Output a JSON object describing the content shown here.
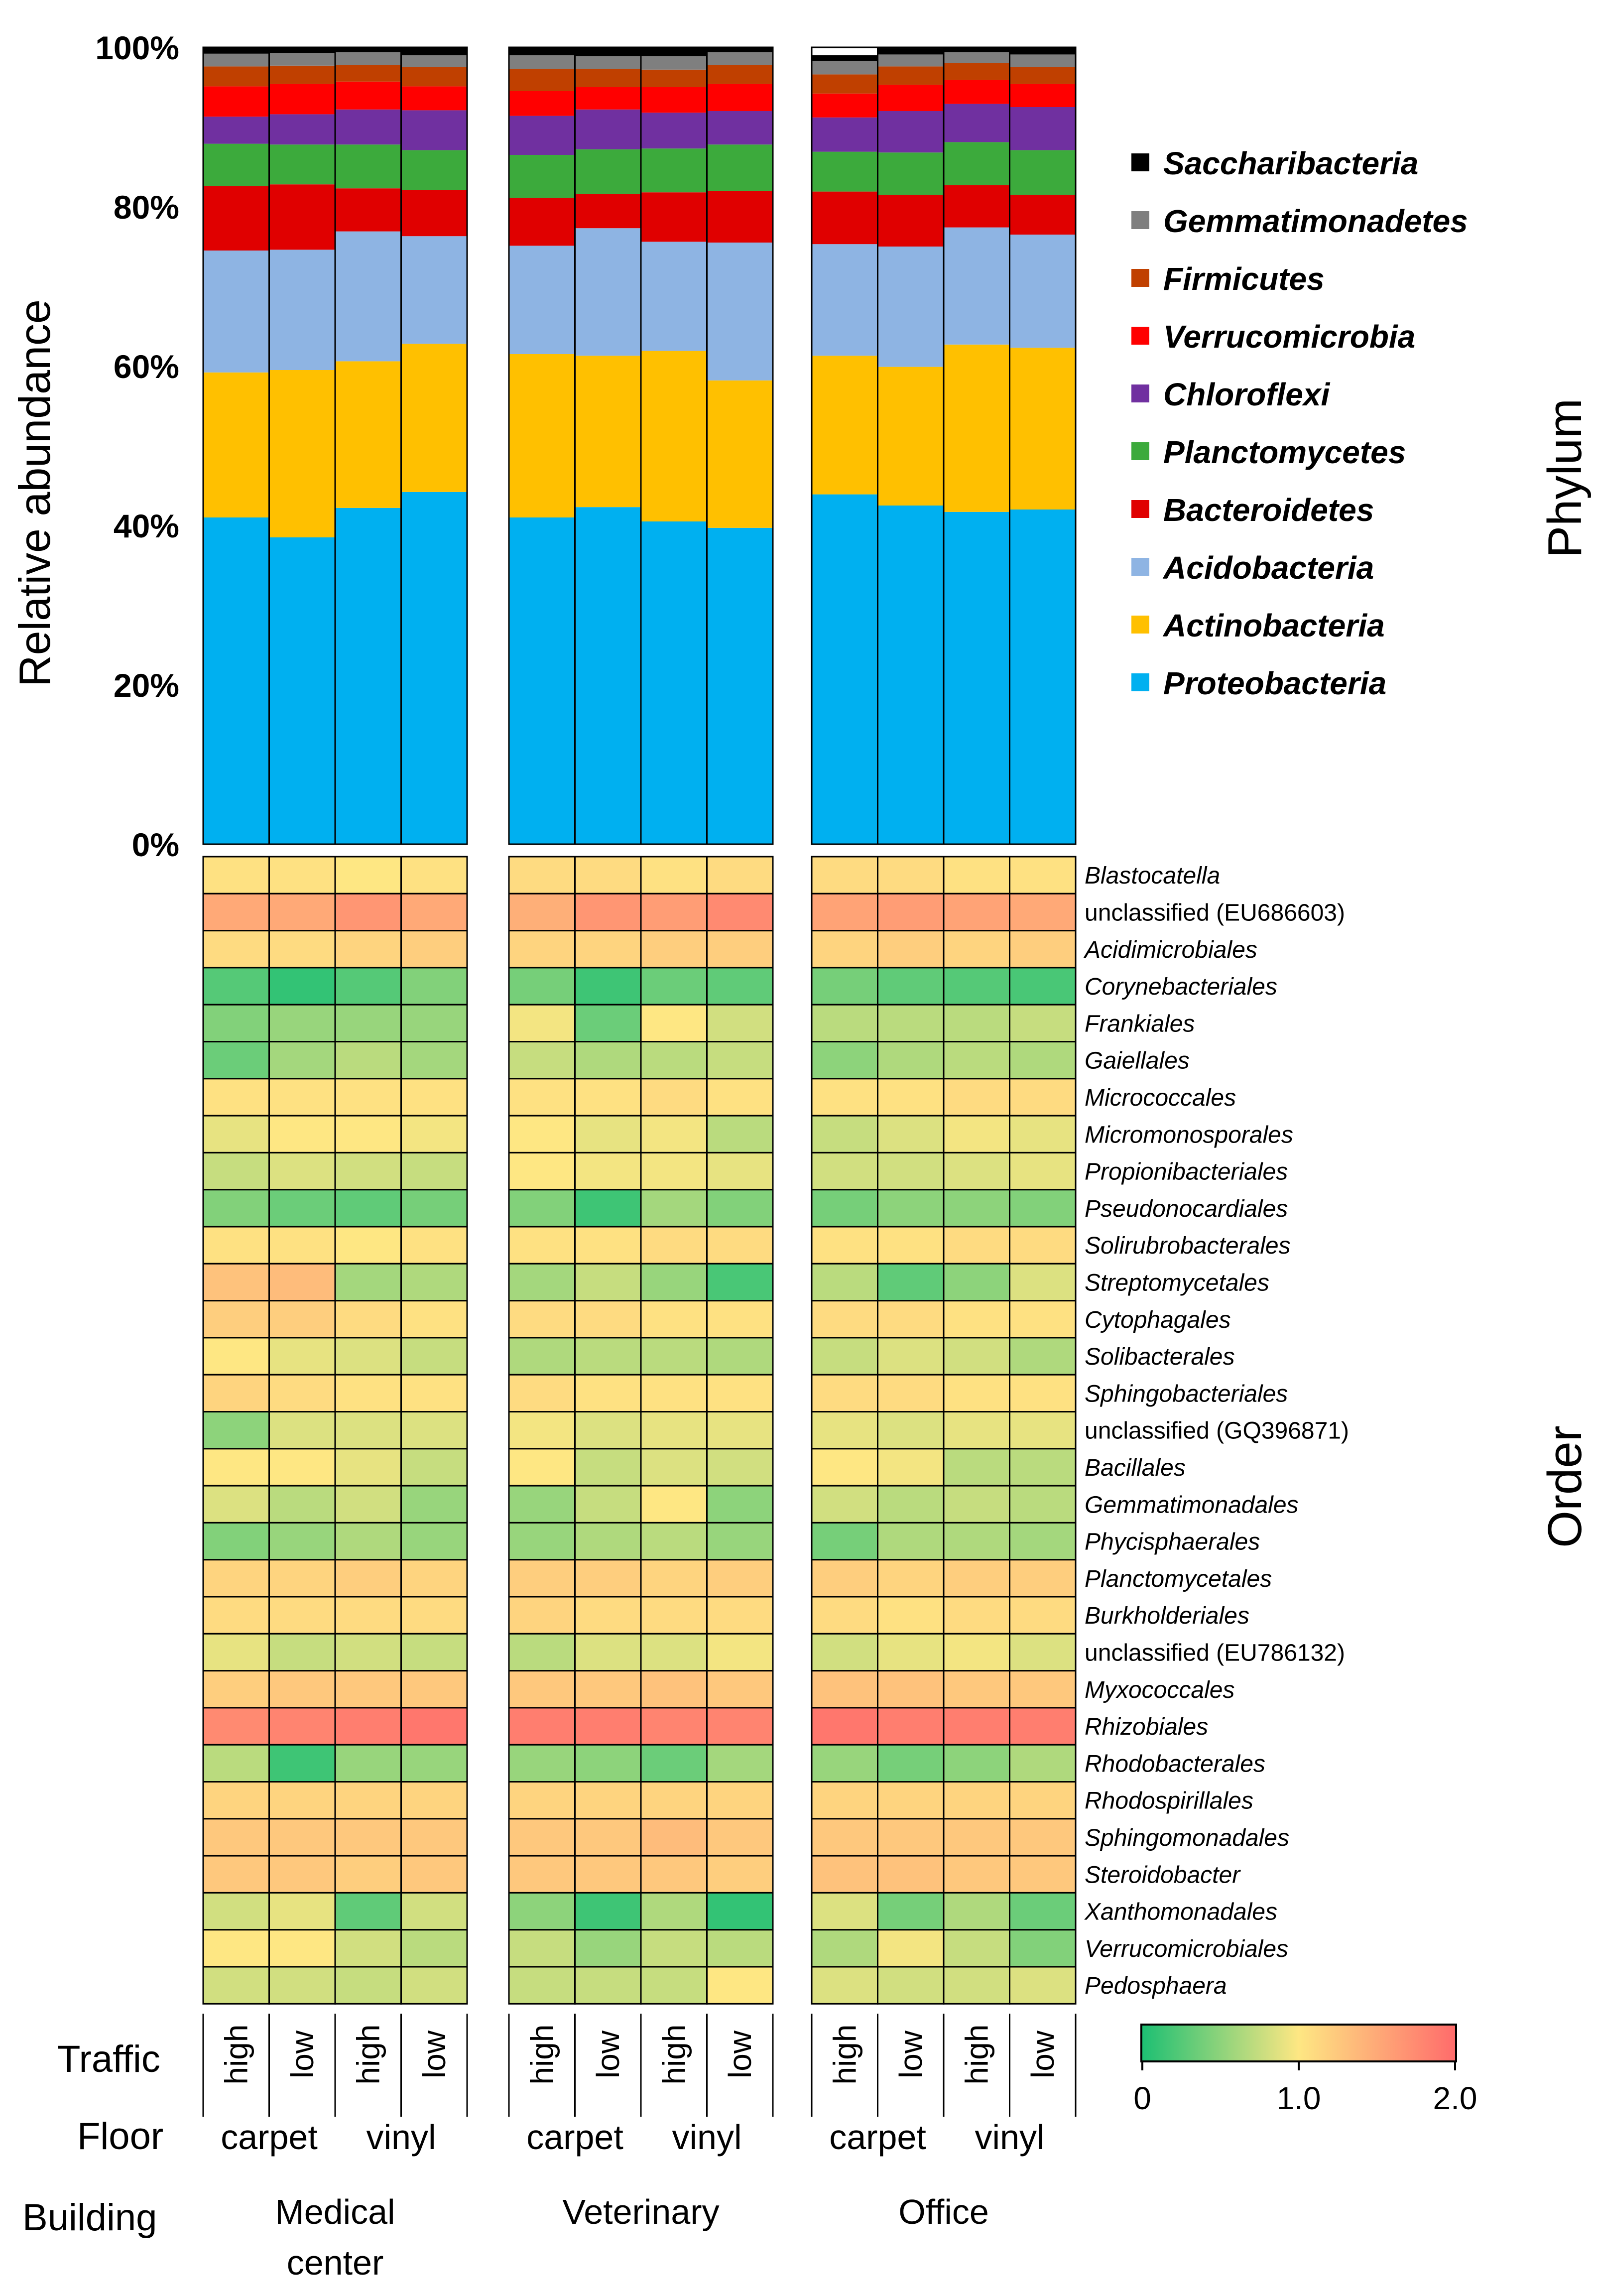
{
  "chart_data": [
    {
      "type": "bar",
      "stacked": true,
      "ylabel": "Relative abundance",
      "side_title": "Phylum",
      "ylim": [
        0,
        100
      ],
      "yticks": [
        "0%",
        "20%",
        "40%",
        "60%",
        "80%",
        "100%"
      ],
      "groups": [
        {
          "building": "Medical center",
          "samples": [
            "carpet-high",
            "carpet-low",
            "vinyl-high",
            "vinyl-low"
          ]
        },
        {
          "building": "Veterinary",
          "samples": [
            "carpet-high",
            "carpet-low",
            "vinyl-high",
            "vinyl-low"
          ]
        },
        {
          "building": "Office",
          "samples": [
            "carpet-high",
            "carpet-low",
            "vinyl-high",
            "vinyl-low"
          ]
        }
      ],
      "series": [
        {
          "name": "Proteobacteria",
          "color": "#00B0F0",
          "values": [
            41,
            38.5,
            42.2,
            44.2,
            41,
            42.3,
            40.5,
            39.7,
            43.9,
            42.5,
            41.7,
            42
          ]
        },
        {
          "name": "Actinobacteria",
          "color": "#FFC000",
          "values": [
            18.2,
            21,
            18.4,
            18.6,
            20.5,
            19,
            21.4,
            18.5,
            17.4,
            17.4,
            21,
            20.3
          ]
        },
        {
          "name": "Acidobacteria",
          "color": "#8EB4E3",
          "values": [
            15.3,
            15.1,
            16.3,
            13.5,
            13.6,
            16,
            13.7,
            17.3,
            14,
            15.1,
            14.7,
            14.2
          ]
        },
        {
          "name": "Bacteroidetes",
          "color": "#E00000",
          "values": [
            8.1,
            8.2,
            5.4,
            5.8,
            6,
            4.3,
            6.2,
            6.5,
            6.6,
            6.5,
            5.3,
            5
          ]
        },
        {
          "name": "Planctomycetes",
          "color": "#3CAA3C",
          "values": [
            5.3,
            5,
            5.5,
            5,
            5.4,
            5.6,
            5.5,
            5.8,
            5,
            5.3,
            5.4,
            5.6
          ]
        },
        {
          "name": "Chloroflexi",
          "color": "#7030A0",
          "values": [
            3.4,
            3.8,
            4.4,
            5,
            4.9,
            5,
            4.5,
            4.2,
            4.3,
            5.2,
            4.8,
            5.4
          ]
        },
        {
          "name": "Verrucomicrobia",
          "color": "#FF0000",
          "values": [
            3.8,
            3.8,
            3.5,
            3,
            3.1,
            2.8,
            3.2,
            3.4,
            3,
            3.3,
            3,
            2.9
          ]
        },
        {
          "name": "Firmicutes",
          "color": "#C04000",
          "values": [
            2.5,
            2.3,
            2.1,
            2.4,
            2.8,
            2.3,
            2.2,
            2.4,
            2.4,
            2.3,
            2.1,
            2.1
          ]
        },
        {
          "name": "Gemmatimonadetes",
          "color": "#7F7F7F",
          "values": [
            1.6,
            1.6,
            1.6,
            1.5,
            1.7,
            1.6,
            1.7,
            1.6,
            1.7,
            1.5,
            1.4,
            1.6
          ]
        },
        {
          "name": "Saccharibacteria",
          "color": "#000000",
          "values": [
            0.8,
            0.7,
            0.6,
            1,
            1,
            1.1,
            1.1,
            0.6,
            0.7,
            0.8,
            0.6,
            0.9
          ]
        }
      ]
    },
    {
      "type": "heatmap",
      "side_title": "Order",
      "colorbar": {
        "min": 0,
        "mid": 1.0,
        "max": 2.0,
        "tick_labels": [
          "0",
          "1.0",
          "2.0"
        ],
        "colors": [
          "#1CBF73",
          "#FEE783",
          "#FF6B6B"
        ]
      },
      "rows": [
        {
          "label": "Blastocatella",
          "italic": true,
          "values": [
            1.05,
            1.05,
            1.0,
            1.05,
            1.1,
            1.1,
            1.05,
            1.1,
            1.1,
            1.1,
            1.05,
            1.05
          ]
        },
        {
          "label": "unclassified (EU686603)",
          "italic": false,
          "values": [
            1.5,
            1.5,
            1.65,
            1.5,
            1.45,
            1.65,
            1.6,
            1.75,
            1.55,
            1.6,
            1.55,
            1.5
          ]
        },
        {
          "label": "Acidimicrobiales",
          "italic": true,
          "values": [
            1.1,
            1.1,
            1.15,
            1.2,
            1.15,
            1.15,
            1.2,
            1.2,
            1.15,
            1.2,
            1.15,
            1.2
          ]
        },
        {
          "label": "Corynebacteriales",
          "italic": true,
          "values": [
            0.25,
            0.1,
            0.25,
            0.45,
            0.4,
            0.15,
            0.35,
            0.3,
            0.4,
            0.3,
            0.25,
            0.2
          ]
        },
        {
          "label": "Frankiales",
          "italic": true,
          "values": [
            0.45,
            0.55,
            0.55,
            0.55,
            0.95,
            0.35,
            1.0,
            0.8,
            0.7,
            0.7,
            0.7,
            0.75
          ]
        },
        {
          "label": "Gaiellales",
          "italic": true,
          "values": [
            0.35,
            0.6,
            0.7,
            0.6,
            0.75,
            0.65,
            0.7,
            0.75,
            0.5,
            0.65,
            0.7,
            0.65
          ]
        },
        {
          "label": "Micrococcales",
          "italic": true,
          "values": [
            1.05,
            1.05,
            1.05,
            1.05,
            1.05,
            1.05,
            1.1,
            1.05,
            1.05,
            1.05,
            1.1,
            1.1
          ]
        },
        {
          "label": "Micromonosporales",
          "italic": true,
          "values": [
            0.9,
            1.0,
            1.0,
            0.95,
            1.0,
            0.9,
            0.95,
            0.7,
            0.75,
            0.85,
            0.95,
            0.9
          ]
        },
        {
          "label": "Propionibacteriales",
          "italic": true,
          "values": [
            0.75,
            0.85,
            0.8,
            0.75,
            1.0,
            0.95,
            0.95,
            0.9,
            0.8,
            0.8,
            0.85,
            0.9
          ]
        },
        {
          "label": "Pseudonocardiales",
          "italic": true,
          "values": [
            0.45,
            0.35,
            0.3,
            0.4,
            0.45,
            0.15,
            0.6,
            0.45,
            0.4,
            0.5,
            0.5,
            0.45
          ]
        },
        {
          "label": "Solirubrobacterales",
          "italic": true,
          "values": [
            1.05,
            1.05,
            1.0,
            1.05,
            1.05,
            1.05,
            1.1,
            1.1,
            1.05,
            1.05,
            1.1,
            1.1
          ]
        },
        {
          "label": "Streptomycetales",
          "italic": true,
          "values": [
            1.3,
            1.35,
            0.6,
            0.65,
            0.6,
            0.75,
            0.55,
            0.2,
            0.7,
            0.3,
            0.5,
            0.85
          ]
        },
        {
          "label": "Cytophagales",
          "italic": true,
          "values": [
            1.2,
            1.2,
            1.1,
            1.05,
            1.1,
            1.1,
            1.05,
            1.05,
            1.1,
            1.1,
            1.05,
            1.05
          ]
        },
        {
          "label": "Solibacterales",
          "italic": true,
          "values": [
            1.0,
            0.9,
            0.85,
            0.75,
            0.65,
            0.7,
            0.7,
            0.65,
            0.75,
            0.85,
            0.8,
            0.65
          ]
        },
        {
          "label": "Sphingobacteriales",
          "italic": true,
          "values": [
            1.15,
            1.1,
            1.05,
            1.05,
            1.1,
            1.05,
            1.05,
            1.05,
            1.1,
            1.1,
            1.05,
            1.05
          ]
        },
        {
          "label": "unclassified (GQ396871)",
          "italic": false,
          "values": [
            0.5,
            0.85,
            0.85,
            0.85,
            0.95,
            0.85,
            0.9,
            0.9,
            0.9,
            0.85,
            0.9,
            0.9
          ]
        },
        {
          "label": "Bacillales",
          "italic": true,
          "values": [
            1.0,
            1.0,
            0.9,
            0.75,
            1.0,
            0.75,
            0.85,
            0.8,
            1.0,
            0.95,
            0.7,
            0.7
          ]
        },
        {
          "label": "Gemmatimonadales",
          "italic": true,
          "values": [
            0.85,
            0.7,
            0.8,
            0.55,
            0.55,
            0.75,
            1.0,
            0.5,
            0.8,
            0.7,
            0.75,
            0.7
          ]
        },
        {
          "label": "Phycisphaerales",
          "italic": true,
          "values": [
            0.45,
            0.55,
            0.65,
            0.55,
            0.55,
            0.65,
            0.7,
            0.55,
            0.4,
            0.65,
            0.65,
            0.6
          ]
        },
        {
          "label": "Planctomycetales",
          "italic": true,
          "values": [
            1.15,
            1.15,
            1.2,
            1.15,
            1.2,
            1.2,
            1.15,
            1.2,
            1.2,
            1.15,
            1.2,
            1.2
          ]
        },
        {
          "label": "Burkholderiales",
          "italic": true,
          "values": [
            1.1,
            1.1,
            1.1,
            1.1,
            1.15,
            1.1,
            1.1,
            1.1,
            1.1,
            1.05,
            1.1,
            1.1
          ]
        },
        {
          "label": "unclassified (EU786132)",
          "italic": false,
          "values": [
            0.9,
            0.75,
            0.8,
            0.75,
            0.7,
            0.85,
            0.85,
            0.95,
            0.8,
            0.9,
            0.95,
            0.85
          ]
        },
        {
          "label": "Myxococcales",
          "italic": true,
          "values": [
            1.2,
            1.25,
            1.25,
            1.25,
            1.25,
            1.25,
            1.3,
            1.25,
            1.3,
            1.3,
            1.25,
            1.25
          ]
        },
        {
          "label": "Rhizobiales",
          "italic": true,
          "values": [
            1.75,
            1.8,
            1.85,
            1.9,
            1.85,
            1.85,
            1.8,
            1.8,
            1.9,
            1.85,
            1.85,
            1.85
          ]
        },
        {
          "label": "Rhodobacterales",
          "italic": true,
          "values": [
            0.7,
            0.15,
            0.55,
            0.55,
            0.55,
            0.5,
            0.35,
            0.6,
            0.55,
            0.4,
            0.5,
            0.65
          ]
        },
        {
          "label": "Rhodospirillales",
          "italic": true,
          "values": [
            1.15,
            1.15,
            1.15,
            1.15,
            1.15,
            1.15,
            1.15,
            1.15,
            1.15,
            1.15,
            1.15,
            1.15
          ]
        },
        {
          "label": "Sphingomonadales",
          "italic": true,
          "values": [
            1.25,
            1.25,
            1.25,
            1.25,
            1.25,
            1.25,
            1.35,
            1.25,
            1.25,
            1.25,
            1.25,
            1.25
          ]
        },
        {
          "label": "Steroidobacter",
          "italic": true,
          "values": [
            1.25,
            1.25,
            1.2,
            1.25,
            1.25,
            1.25,
            1.25,
            1.2,
            1.3,
            1.3,
            1.25,
            1.25
          ]
        },
        {
          "label": "Xanthomonadales",
          "italic": true,
          "values": [
            0.8,
            0.9,
            0.3,
            0.8,
            0.5,
            0.15,
            0.65,
            0.1,
            0.85,
            0.4,
            0.65,
            0.35
          ]
        },
        {
          "label": "Verrucomicrobiales",
          "italic": true,
          "values": [
            1.0,
            1.0,
            0.8,
            0.7,
            0.75,
            0.55,
            0.75,
            0.7,
            0.65,
            0.95,
            0.75,
            0.45
          ]
        },
        {
          "label": "Pedosphaera",
          "italic": true,
          "values": [
            0.8,
            0.8,
            0.75,
            0.8,
            0.75,
            0.75,
            0.75,
            1.0,
            0.85,
            0.8,
            0.8,
            0.85
          ]
        }
      ]
    }
  ],
  "axis_labels": {
    "traffic_title": "Traffic",
    "floor_title": "Floor",
    "building_title": "Building",
    "traffic": [
      "high",
      "low",
      "high",
      "low",
      "high",
      "low",
      "high",
      "low",
      "high",
      "low",
      "high",
      "low"
    ],
    "floor": [
      "carpet",
      "vinyl",
      "carpet",
      "vinyl",
      "carpet",
      "vinyl"
    ],
    "building": [
      [
        "Medical",
        "center"
      ],
      [
        "Veterinary"
      ],
      [
        "Office"
      ]
    ]
  }
}
